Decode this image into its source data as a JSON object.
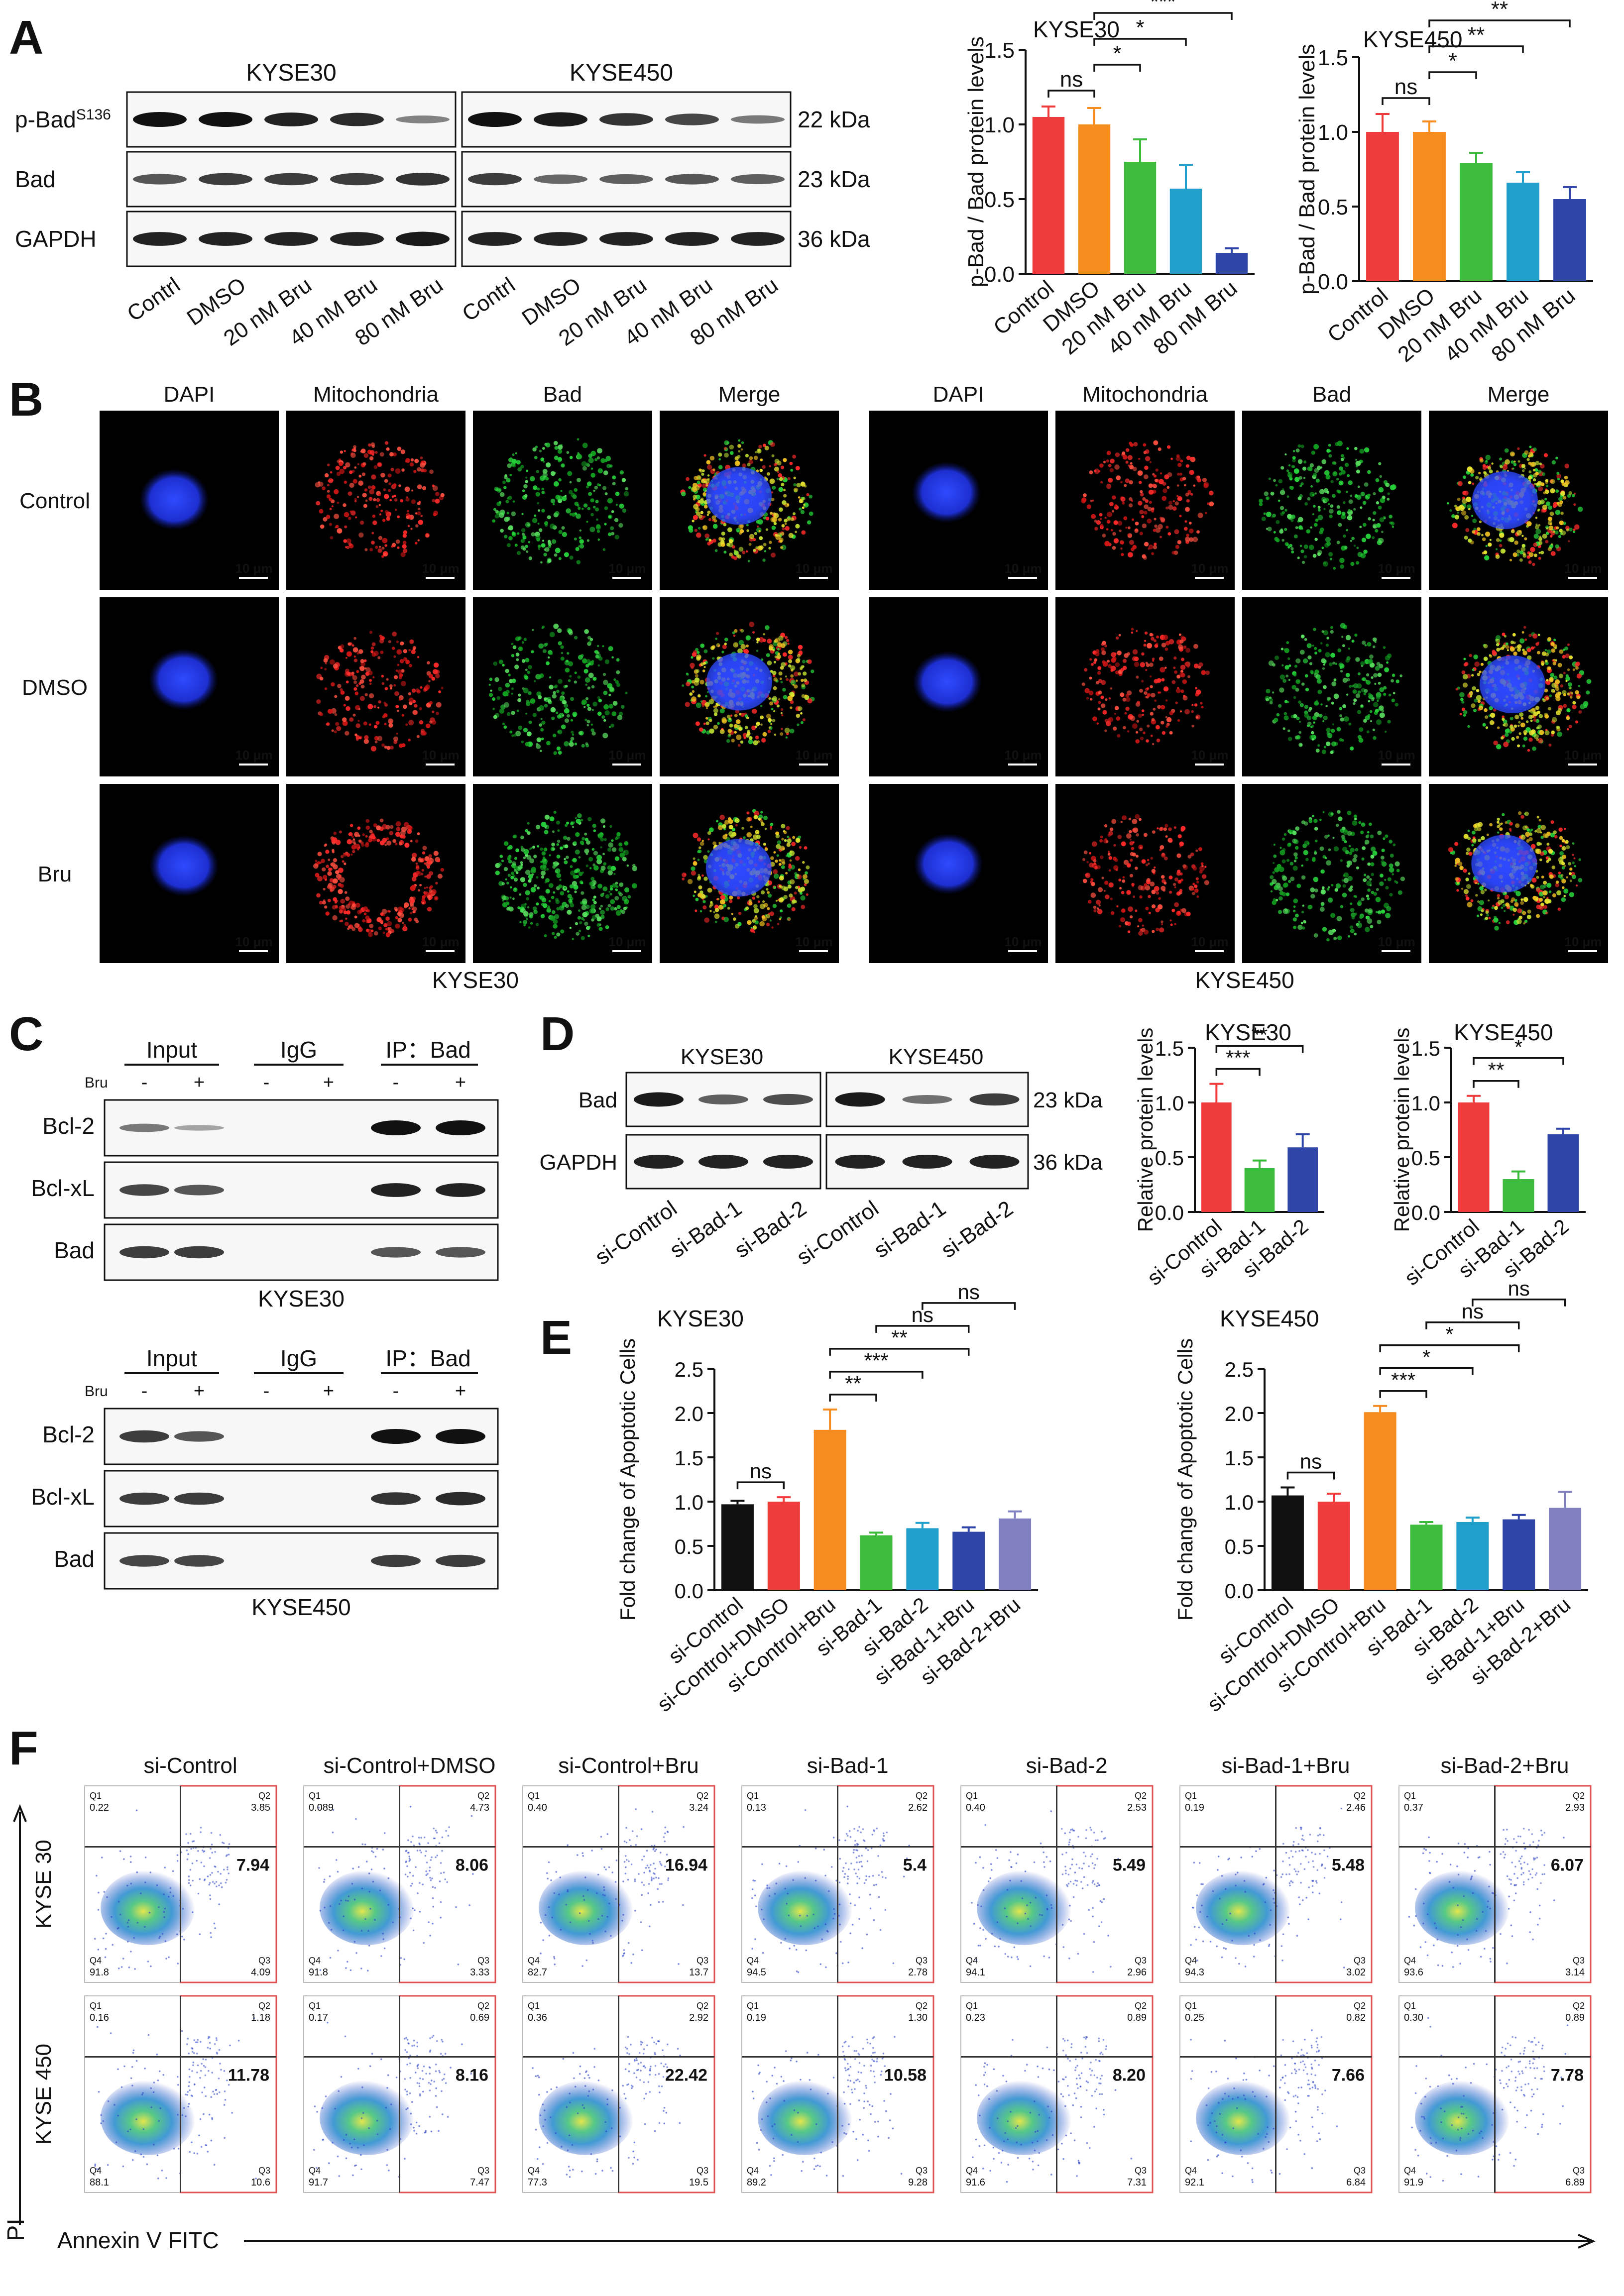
{
  "panels": {
    "A": {
      "label": "A",
      "wb": {
        "cell_lines": [
          "KYSE30",
          "KYSE450"
        ],
        "rows": [
          {
            "name": "p-Bad",
            "sup": "S136",
            "kda": "22 kDa",
            "k30": [
              1,
              1,
              0.9,
              0.85,
              0.35
            ],
            "k450": [
              1,
              0.95,
              0.8,
              0.7,
              0.4
            ]
          },
          {
            "name": "Bad",
            "sup": "",
            "kda": "23 kDa",
            "k30": [
              0.6,
              0.75,
              0.75,
              0.75,
              0.8
            ],
            "k450": [
              0.75,
              0.5,
              0.55,
              0.6,
              0.55
            ]
          },
          {
            "name": "GAPDH",
            "sup": "",
            "kda": "36 kDa",
            "k30": [
              0.9,
              0.9,
              0.9,
              0.9,
              0.95
            ],
            "k450": [
              0.9,
              0.9,
              0.9,
              0.9,
              0.9
            ]
          }
        ],
        "lanes": [
          "Contrl",
          "DMSO",
          "20 nM Bru",
          "40 nM Bru",
          "80 nM Bru"
        ]
      }
    },
    "B": {
      "label": "B",
      "channels": [
        "DAPI",
        "Mitochondria",
        "Bad",
        "Merge"
      ],
      "conditions": [
        "Control",
        "DMSO",
        "Bru"
      ],
      "cell_lines": [
        "KYSE30",
        "KYSE450"
      ],
      "scale_bar": "10 μm"
    },
    "C": {
      "label": "C",
      "groups": [
        "Input",
        "IgG",
        "IP：Bad"
      ],
      "bru_label": "Bru",
      "signs": [
        "-",
        "+",
        "-",
        "+",
        "-",
        "+"
      ],
      "rows": [
        "Bcl-2",
        "Bcl-xL",
        "Bad"
      ],
      "blots": [
        {
          "cell_line": "KYSE30",
          "bands": [
            [
              0.4,
              0.15,
              0,
              0,
              1,
              1
            ],
            [
              0.7,
              0.6,
              0,
              0,
              0.9,
              0.9
            ],
            [
              0.75,
              0.75,
              0,
              0,
              0.6,
              0.6
            ]
          ]
        },
        {
          "cell_line": "KYSE450",
          "bands": [
            [
              0.75,
              0.6,
              0,
              0,
              1,
              1
            ],
            [
              0.75,
              0.75,
              0,
              0,
              0.8,
              0.85
            ],
            [
              0.7,
              0.7,
              0,
              0,
              0.75,
              0.75
            ]
          ]
        }
      ]
    },
    "D": {
      "label": "D",
      "wb": {
        "cell_lines": [
          "KYSE30",
          "KYSE450"
        ],
        "rows": [
          {
            "name": "Bad",
            "kda": "23 kDa",
            "k30": [
              0.95,
              0.55,
              0.65
            ],
            "k450": [
              0.95,
              0.45,
              0.75
            ]
          },
          {
            "name": "GAPDH",
            "kda": "36 kDa",
            "k30": [
              0.9,
              0.9,
              0.9
            ],
            "k450": [
              0.9,
              0.9,
              0.9
            ]
          }
        ],
        "lanes": [
          "si-Control",
          "si-Bad-1",
          "si-Bad-2"
        ]
      }
    },
    "E": {
      "label": "E"
    },
    "F": {
      "label": "F",
      "groups": [
        "si-Control",
        "si-Control+DMSO",
        "si-Control+Bru",
        "si-Bad-1",
        "si-Bad-2",
        "si-Bad-1+Bru",
        "si-Bad-2+Bru"
      ],
      "row_labels": [
        "KYSE 30",
        "KYSE 450"
      ],
      "y_axis": "PI",
      "x_axis": "Annexin V FITC",
      "rows": [
        [
          {
            "q1": "0.22",
            "q2": "3.85",
            "q3": "4.09",
            "q4": "91.8",
            "total": "7.94"
          },
          {
            "q1": "0.089",
            "q2": "4.73",
            "q3": "3.33",
            "q4": "91.8",
            "total": "8.06"
          },
          {
            "q1": "0.40",
            "q2": "3.24",
            "q3": "13.7",
            "q4": "82.7",
            "total": "16.94"
          },
          {
            "q1": "0.13",
            "q2": "2.62",
            "q3": "2.78",
            "q4": "94.5",
            "total": "5.4"
          },
          {
            "q1": "0.40",
            "q2": "2.53",
            "q3": "2.96",
            "q4": "94.1",
            "total": "5.49"
          },
          {
            "q1": "0.19",
            "q2": "2.46",
            "q3": "3.02",
            "q4": "94.3",
            "total": "5.48"
          },
          {
            "q1": "0.37",
            "q2": "2.93",
            "q3": "3.14",
            "q4": "93.6",
            "total": "6.07"
          }
        ],
        [
          {
            "q1": "0.16",
            "q2": "1.18",
            "q3": "10.6",
            "q4": "88.1",
            "total": "11.78"
          },
          {
            "q1": "0.17",
            "q2": "0.69",
            "q3": "7.47",
            "q4": "91.7",
            "total": "8.16"
          },
          {
            "q1": "0.36",
            "q2": "2.92",
            "q3": "19.5",
            "q4": "77.3",
            "total": "22.42"
          },
          {
            "q1": "0.19",
            "q2": "1.30",
            "q3": "9.28",
            "q4": "89.2",
            "total": "10.58"
          },
          {
            "q1": "0.23",
            "q2": "0.89",
            "q3": "7.31",
            "q4": "91.6",
            "total": "8.20"
          },
          {
            "q1": "0.25",
            "q2": "0.82",
            "q3": "6.84",
            "q4": "92.1",
            "total": "7.66"
          },
          {
            "q1": "0.30",
            "q2": "0.89",
            "q3": "6.89",
            "q4": "91.9",
            "total": "7.78"
          }
        ]
      ]
    }
  },
  "chart_data": [
    {
      "id": "A1",
      "type": "bar",
      "title": "KYSE30",
      "ylabel": "p-Bad / Bad protein levels",
      "categories": [
        "Control",
        "DMSO",
        "20 nM Bru",
        "40 nM Bru",
        "80 nM Bru"
      ],
      "values": [
        1.05,
        1.0,
        0.75,
        0.57,
        0.14
      ],
      "errors": [
        0.07,
        0.11,
        0.15,
        0.16,
        0.03
      ],
      "colors": [
        "#ee3b3b",
        "#f68b1f",
        "#3cbb3c",
        "#1f9fc9",
        "#2f45a8"
      ],
      "ylim": [
        0,
        1.5
      ],
      "yticks": [
        0.0,
        0.5,
        1.0,
        1.5
      ],
      "sig": [
        {
          "a": 0,
          "b": 1,
          "label": "ns"
        },
        {
          "a": 1,
          "b": 2,
          "label": "*"
        },
        {
          "a": 1,
          "b": 3,
          "label": "*"
        },
        {
          "a": 1,
          "b": 4,
          "label": "***"
        }
      ]
    },
    {
      "id": "A2",
      "type": "bar",
      "title": "KYSE450",
      "ylabel": "p-Bad / Bad protein levels",
      "categories": [
        "Control",
        "DMSO",
        "20 nM Bru",
        "40 nM Bru",
        "80 nM Bru"
      ],
      "values": [
        1.0,
        1.0,
        0.79,
        0.66,
        0.55
      ],
      "errors": [
        0.12,
        0.07,
        0.07,
        0.07,
        0.08
      ],
      "colors": [
        "#ee3b3b",
        "#f68b1f",
        "#3cbb3c",
        "#1f9fc9",
        "#2f45a8"
      ],
      "ylim": [
        0,
        1.5
      ],
      "yticks": [
        0.0,
        0.5,
        1.0,
        1.5
      ],
      "sig": [
        {
          "a": 0,
          "b": 1,
          "label": "ns"
        },
        {
          "a": 1,
          "b": 2,
          "label": "*"
        },
        {
          "a": 1,
          "b": 3,
          "label": "**"
        },
        {
          "a": 1,
          "b": 4,
          "label": "**"
        }
      ]
    },
    {
      "id": "D1",
      "type": "bar",
      "title": "KYSE30",
      "ylabel": "Relative protein levels",
      "categories": [
        "si-Control",
        "si-Bad-1",
        "si-Bad-2"
      ],
      "values": [
        1.0,
        0.4,
        0.59
      ],
      "errors": [
        0.17,
        0.07,
        0.12
      ],
      "colors": [
        "#ee3b3b",
        "#3cbb3c",
        "#2f45a8"
      ],
      "ylim": [
        0,
        1.5
      ],
      "yticks": [
        0.0,
        0.5,
        1.0,
        1.5
      ],
      "sig": [
        {
          "a": 0,
          "b": 1,
          "label": "***"
        },
        {
          "a": 0,
          "b": 2,
          "label": "**"
        }
      ]
    },
    {
      "id": "D2",
      "type": "bar",
      "title": "KYSE450",
      "ylabel": "Relative protein levels",
      "categories": [
        "si-Control",
        "si-Bad-1",
        "si-Bad-2"
      ],
      "values": [
        1.0,
        0.3,
        0.71
      ],
      "errors": [
        0.06,
        0.07,
        0.05
      ],
      "colors": [
        "#ee3b3b",
        "#3cbb3c",
        "#2f45a8"
      ],
      "ylim": [
        0,
        1.5
      ],
      "yticks": [
        0.0,
        0.5,
        1.0,
        1.5
      ],
      "sig": [
        {
          "a": 0,
          "b": 1,
          "label": "**"
        },
        {
          "a": 0,
          "b": 2,
          "label": "*"
        }
      ]
    },
    {
      "id": "E1",
      "type": "bar",
      "title": "KYSE30",
      "ylabel": "Fold change of Apoptotic Cells",
      "categories": [
        "si-Control",
        "si-Control+DMSO",
        "si-Control+Bru",
        "si-Bad-1",
        "si-Bad-2",
        "si-Bad-1+Bru",
        "si-Bad-2+Bru"
      ],
      "values": [
        0.97,
        1.0,
        1.81,
        0.62,
        0.7,
        0.66,
        0.81
      ],
      "errors": [
        0.04,
        0.05,
        0.23,
        0.03,
        0.06,
        0.05,
        0.08
      ],
      "colors": [
        "#111111",
        "#ee3b3b",
        "#f68b1f",
        "#3cbb3c",
        "#1f9fc9",
        "#2f45a8",
        "#8080c0"
      ],
      "ylim": [
        0,
        2.5
      ],
      "yticks": [
        0.0,
        0.5,
        1.0,
        1.5,
        2.0,
        2.5
      ],
      "sig": [
        {
          "a": 0,
          "b": 1,
          "label": "ns"
        },
        {
          "a": 2,
          "b": 3,
          "label": "**"
        },
        {
          "a": 2,
          "b": 4,
          "label": "***"
        },
        {
          "a": 2,
          "b": 5,
          "label": "**"
        },
        {
          "a": 3,
          "b": 5,
          "label": "ns"
        },
        {
          "a": 4,
          "b": 6,
          "label": "ns"
        }
      ]
    },
    {
      "id": "E2",
      "type": "bar",
      "title": "KYSE450",
      "ylabel": "Fold change of Apoptotic Cells",
      "categories": [
        "si-Control",
        "si-Control+DMSO",
        "si-Control+Bru",
        "si-Bad-1",
        "si-Bad-2",
        "si-Bad-1+Bru",
        "si-Bad-2+Bru"
      ],
      "values": [
        1.07,
        1.0,
        2.01,
        0.74,
        0.77,
        0.8,
        0.93
      ],
      "errors": [
        0.09,
        0.09,
        0.07,
        0.03,
        0.05,
        0.05,
        0.18
      ],
      "colors": [
        "#111111",
        "#ee3b3b",
        "#f68b1f",
        "#3cbb3c",
        "#1f9fc9",
        "#2f45a8",
        "#8080c0"
      ],
      "ylim": [
        0,
        2.5
      ],
      "yticks": [
        0.0,
        0.5,
        1.0,
        1.5,
        2.0,
        2.5
      ],
      "sig": [
        {
          "a": 0,
          "b": 1,
          "label": "ns"
        },
        {
          "a": 2,
          "b": 3,
          "label": "***"
        },
        {
          "a": 2,
          "b": 4,
          "label": "*"
        },
        {
          "a": 2,
          "b": 5,
          "label": "*"
        },
        {
          "a": 3,
          "b": 5,
          "label": "ns"
        },
        {
          "a": 4,
          "b": 6,
          "label": "ns"
        }
      ]
    }
  ]
}
